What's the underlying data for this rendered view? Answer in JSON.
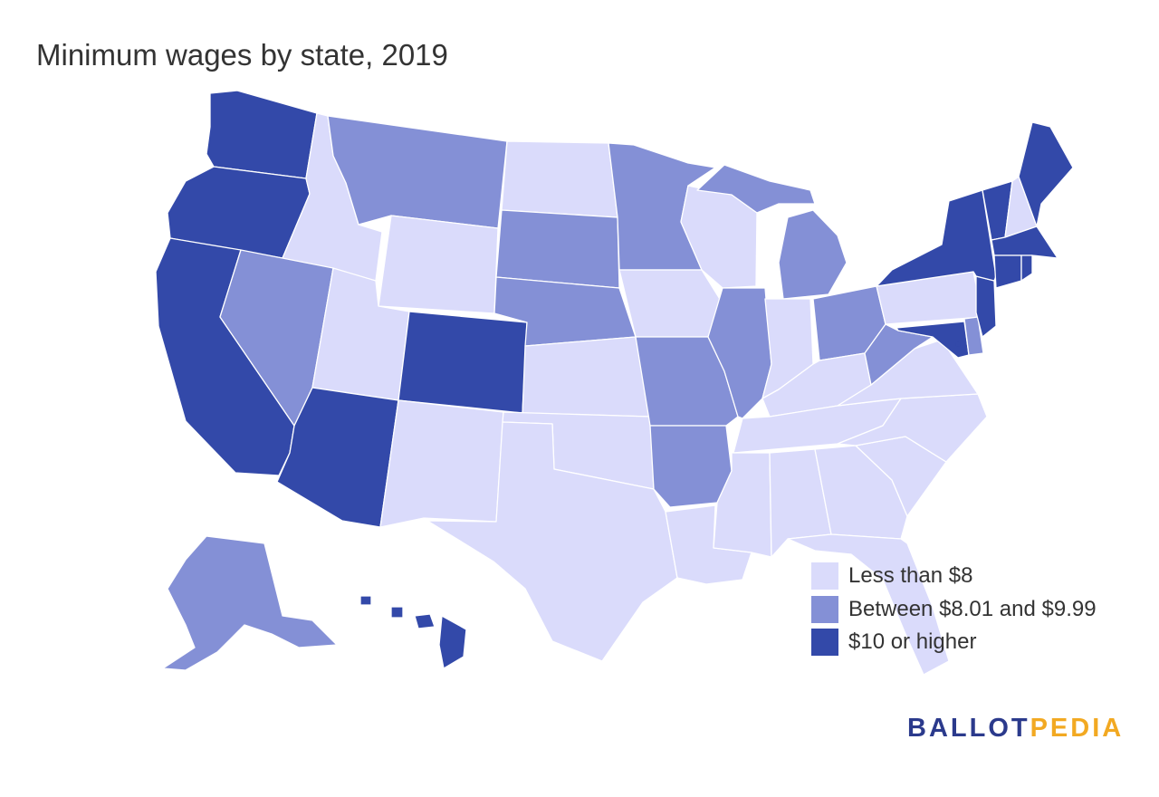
{
  "title": "Minimum wages by state, 2019",
  "colors": {
    "low": "#dadbfb",
    "mid": "#8490d6",
    "high": "#3349a9",
    "border": "#ffffff",
    "brand_primary": "#2b3a8c",
    "brand_accent": "#f2a922"
  },
  "legend": [
    {
      "label": "Less than $8",
      "category": "low"
    },
    {
      "label": "Between $8.01 and $9.99",
      "category": "mid"
    },
    {
      "label": "$10 or higher",
      "category": "high"
    }
  ],
  "brand": {
    "part1": "BALLOT",
    "part2": "PEDIA"
  },
  "state_categories": {
    "WA": "high",
    "OR": "high",
    "CA": "high",
    "AZ": "high",
    "CO": "high",
    "NY": "high",
    "VT": "high",
    "ME": "high",
    "MA": "high",
    "CT": "high",
    "RI": "high",
    "NJ": "high",
    "MD": "high",
    "HI": "high",
    "DC": "high",
    "MT": "mid",
    "NV": "mid",
    "SD": "mid",
    "NE": "mid",
    "MN": "mid",
    "MO": "mid",
    "AR": "mid",
    "IL": "mid",
    "MI": "mid",
    "OH": "mid",
    "WV": "mid",
    "DE": "mid",
    "AK": "mid",
    "FL": "low",
    "ID": "low",
    "UT": "low",
    "WY": "low",
    "ND": "low",
    "KS": "low",
    "OK": "low",
    "TX": "low",
    "NM": "low",
    "IA": "low",
    "WI": "low",
    "IN": "low",
    "KY": "low",
    "TN": "low",
    "MS": "low",
    "AL": "low",
    "GA": "low",
    "SC": "low",
    "NC": "low",
    "VA": "low",
    "PA": "low",
    "NH": "low",
    "LA": "low"
  }
}
